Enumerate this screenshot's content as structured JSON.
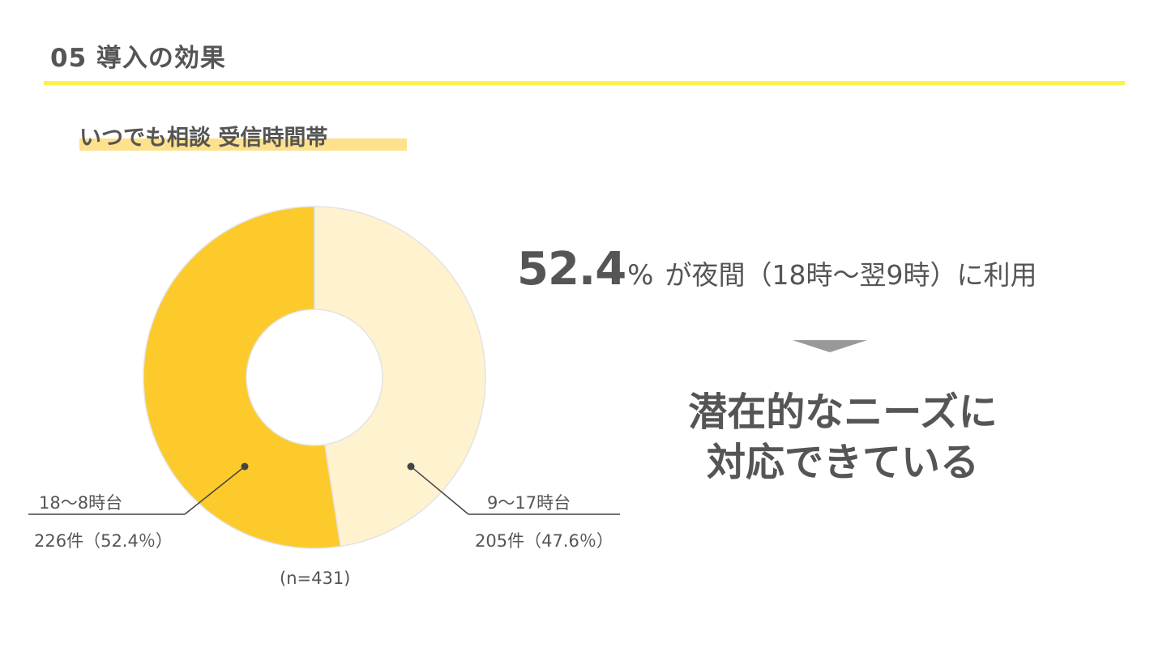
{
  "header": {
    "title": "05  導入の効果",
    "subtitle": "いつでも相談 受信時間帯"
  },
  "colors": {
    "accent_rule": "#fef14c",
    "subtitle_highlight": "#ffe18d",
    "night_slice": "#fcca2b",
    "day_slice": "#fff2cf",
    "text": "#555555",
    "arrow": "#999999"
  },
  "chart_data": {
    "type": "pie",
    "donut": true,
    "slices": [
      {
        "name": "9〜17時台",
        "value": 205,
        "label": "205件（47.6％）"
      },
      {
        "name": "18〜8時台",
        "value": 226,
        "label": "226件（52.4％）"
      }
    ],
    "n_label": "(n=431)"
  },
  "headline": {
    "number": "52.4",
    "percent_sign": "%",
    "text": "が夜間（18時〜翌9時）に利用"
  },
  "conclusion": {
    "line1": "潜在的なニーズに",
    "line2": "対応できている"
  },
  "icons": {
    "arrow": "down-triangle-icon"
  }
}
